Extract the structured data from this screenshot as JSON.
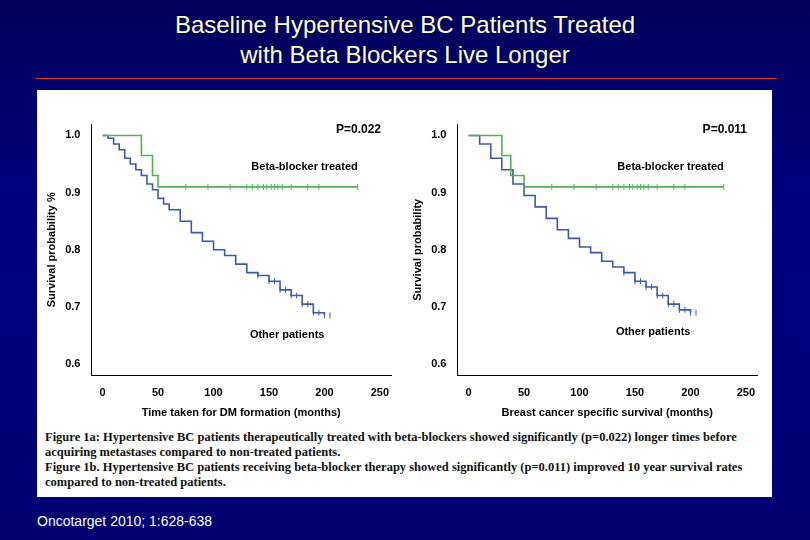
{
  "title": [
    "Baseline Hypertensive BC Patients Treated",
    "with Beta Blockers Live Longer"
  ],
  "caption": [
    "Figure 1a: Hypertensive BC patients therapeutically treated with beta-blockers showed significantly (p=0.022) longer times before acquiring metastases compared to non-treated patients.",
    "Figure 1b. Hypertensive BC patients receiving beta-blocker therapy showed significantly (p=0.011) improved 10 year survival rates compared to non-treated patients."
  ],
  "source": "Oncotarget 2010; 1:628-638",
  "chart_data": [
    {
      "type": "line",
      "annotation": "P=0.022",
      "x_label": "Time taken for DM formation (months)",
      "y_label": "Survival probability %",
      "xlim": [
        -10,
        260
      ],
      "xticks": [
        0,
        50,
        100,
        150,
        200,
        250
      ],
      "ylim": [
        0.58,
        1.02
      ],
      "yticks": [
        {
          "value": 0.6,
          "label": "0.6"
        },
        {
          "value": 0.7,
          "label": "0.7"
        },
        {
          "value": 0.8,
          "label": "0.8"
        },
        {
          "value": 0.9,
          "label": "0.9"
        },
        {
          "value": 1,
          "label": "1.0"
        }
      ],
      "grid": false,
      "line_style": "stepped",
      "series": [
        {
          "name": "Beta-blocker treated",
          "color": "#55b055",
          "marker": "line",
          "x": [
            0,
            35,
            45,
            50,
            230
          ],
          "values": [
            1,
            0.965,
            0.93,
            0.91,
            0.91
          ],
          "censored": [
            75,
            95,
            115,
            130,
            135,
            140,
            145,
            148,
            152,
            155,
            158,
            162,
            170,
            185,
            195,
            230
          ]
        },
        {
          "name": "Other patients",
          "color": "#3a5aa8",
          "marker": "line",
          "x": [
            0,
            5,
            10,
            15,
            20,
            25,
            30,
            35,
            40,
            45,
            50,
            55,
            60,
            70,
            80,
            90,
            100,
            110,
            120,
            130,
            140,
            150,
            160,
            170,
            180,
            190,
            200
          ],
          "values": [
            1,
            0.995,
            0.985,
            0.975,
            0.96,
            0.95,
            0.94,
            0.93,
            0.915,
            0.905,
            0.89,
            0.88,
            0.87,
            0.85,
            0.83,
            0.815,
            0.8,
            0.79,
            0.775,
            0.76,
            0.755,
            0.745,
            0.73,
            0.72,
            0.705,
            0.69,
            0.685
          ],
          "censored": [
            140,
            150,
            155,
            160,
            165,
            170,
            175,
            180,
            185,
            190,
            195,
            200,
            205
          ]
        }
      ]
    },
    {
      "type": "line",
      "annotation": "P=0.011",
      "x_label": "Breast cancer specific survival (months)",
      "y_label": "Survival probability",
      "xlim": [
        -10,
        260
      ],
      "xticks": [
        0,
        50,
        100,
        150,
        200,
        250
      ],
      "ylim": [
        0.58,
        1.02
      ],
      "yticks": [
        {
          "value": 0.6,
          "label": "0.6"
        },
        {
          "value": 0.7,
          "label": "0.7"
        },
        {
          "value": 0.8,
          "label": "0.8"
        },
        {
          "value": 0.9,
          "label": "0.9"
        },
        {
          "value": 1,
          "label": "1.0"
        }
      ],
      "grid": false,
      "line_style": "stepped",
      "series": [
        {
          "name": "Beta-blocker treated",
          "color": "#55b055",
          "marker": "line",
          "x": [
            0,
            30,
            38,
            50,
            230
          ],
          "values": [
            1,
            0.965,
            0.93,
            0.91,
            0.91
          ],
          "censored": [
            75,
            95,
            115,
            130,
            135,
            140,
            145,
            148,
            152,
            155,
            158,
            162,
            170,
            185,
            195,
            230
          ]
        },
        {
          "name": "Other patients",
          "color": "#3a5aa8",
          "marker": "line",
          "x": [
            0,
            10,
            20,
            30,
            40,
            50,
            60,
            70,
            80,
            90,
            100,
            110,
            120,
            130,
            140,
            150,
            160,
            170,
            180,
            190,
            200
          ],
          "values": [
            1,
            0.985,
            0.96,
            0.94,
            0.915,
            0.895,
            0.875,
            0.855,
            0.835,
            0.82,
            0.805,
            0.795,
            0.78,
            0.77,
            0.76,
            0.745,
            0.735,
            0.72,
            0.705,
            0.695,
            0.69
          ],
          "censored": [
            140,
            150,
            155,
            160,
            165,
            170,
            175,
            180,
            185,
            190,
            195,
            200,
            205
          ]
        }
      ]
    }
  ]
}
